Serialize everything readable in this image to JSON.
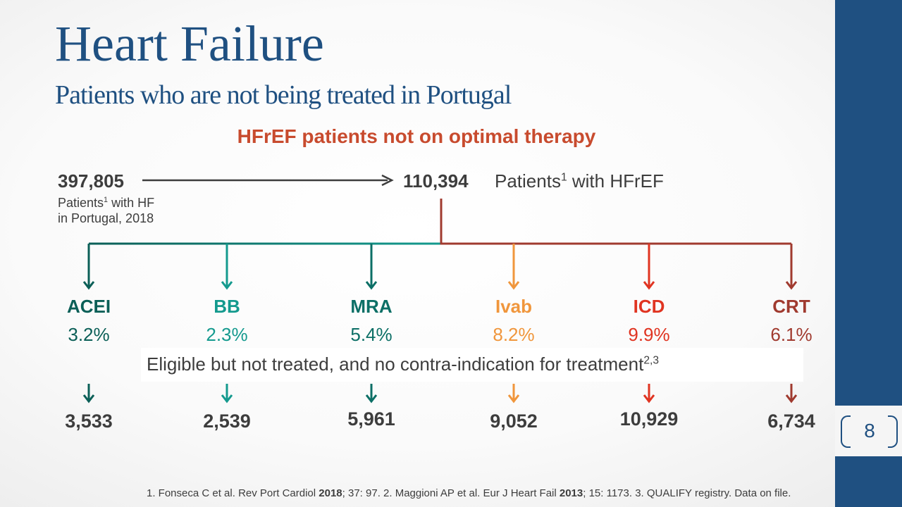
{
  "slide": {
    "title": "Heart Failure",
    "subtitle": "Patients who are not being treated in Portugal",
    "heading": "HFrEF patients not on optimal therapy",
    "page_number": "8"
  },
  "flow": {
    "total_count": "397,805",
    "total_label_1": "Patients",
    "total_label_sup": "1",
    "total_label_2": " with HF",
    "total_label_3": "in Portugal, 2018",
    "hfref_count": "110,394",
    "hfref_label_1": "Patients",
    "hfref_label_sup": "1",
    "hfref_label_2": " with HFrEF"
  },
  "categories": [
    {
      "name": "ACEI",
      "percent": "3.2%",
      "count": "3,533",
      "color": "#0b5f57"
    },
    {
      "name": "BB",
      "percent": "2.3%",
      "count": "2,539",
      "color": "#149a8e"
    },
    {
      "name": "MRA",
      "percent": "5.4%",
      "count": "5,961",
      "color": "#0c6f66"
    },
    {
      "name": "Ivab",
      "percent": "8.2%",
      "count": "9,052",
      "color": "#f0963c"
    },
    {
      "name": "ICD",
      "percent": "9.9%",
      "count": "10,929",
      "color": "#e03421"
    },
    {
      "name": "CRT",
      "percent": "6.1%",
      "count": "6,734",
      "color": "#a03a2f"
    }
  ],
  "eligible_text": "Eligible but not treated, and no contra-indication for treatment",
  "eligible_sup": "2,3",
  "references": {
    "r1a": "1. Fonseca C et al. Rev Port Cardiol ",
    "r1b": "2018",
    "r1c": "; 37: 97. 2. Maggioni AP et al. Eur J Heart Fail ",
    "r1d": "2013",
    "r1e": "; 15: 1173. 3. QUALIFY registry. Data on file."
  }
}
